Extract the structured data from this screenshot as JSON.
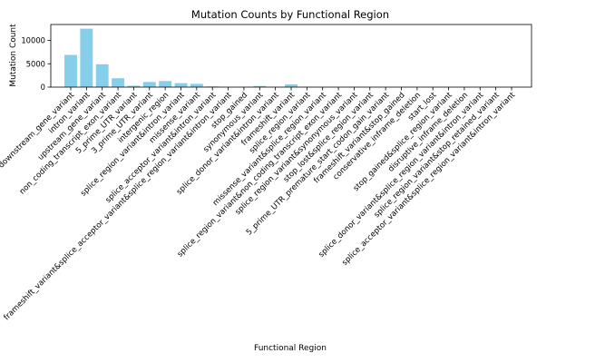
{
  "chart_data": {
    "type": "bar",
    "title": "Mutation Counts by Functional Region",
    "xlabel": "Functional Region",
    "ylabel": "Mutation Count",
    "ylim": [
      0,
      13400
    ],
    "yticks": [
      0,
      5000,
      10000
    ],
    "grid": false,
    "bar_color": "#87CEEB",
    "categories": [
      "downstream_gene_variant",
      "intron_variant",
      "upstream_gene_variant",
      "non_coding_transcript_exon_variant",
      "5_prime_UTR_variant",
      "3_prime_UTR_variant",
      "intergenic_region",
      "splice_region_variant&intron_variant",
      "missense_variant",
      "splice_acceptor_variant&intron_variant",
      "frameshift_variant&splice_acceptor_variant&splice_region_variant&intron_variant",
      "stop_gained",
      "synonymous_variant",
      "splice_donor_variant&intron_variant",
      "frameshift_variant",
      "splice_region_variant",
      "missense_variant&splice_region_variant",
      "splice_region_variant&non_coding_transcript_exon_variant",
      "splice_region_variant&synonymous_variant",
      "stop_lost&splice_region_variant",
      "5_prime_UTR_premature_start_codon_gain_variant",
      "frameshift_variant&stop_gained",
      "conservative_inframe_deletion",
      "start_lost",
      "stop_gained&splice_region_variant",
      "disruptive_inframe_deletion",
      "splice_donor_variant&splice_region_variant&intron_variant",
      "splice_region_variant&stop_retained_variant",
      "splice_acceptor_variant&splice_region_variant&intron_variant"
    ],
    "values": [
      6900,
      12500,
      4900,
      1900,
      300,
      1100,
      1300,
      850,
      700,
      150,
      5,
      30,
      250,
      20,
      600,
      40,
      10,
      15,
      20,
      5,
      5,
      5,
      5,
      5,
      5,
      5,
      5,
      5,
      5
    ]
  }
}
